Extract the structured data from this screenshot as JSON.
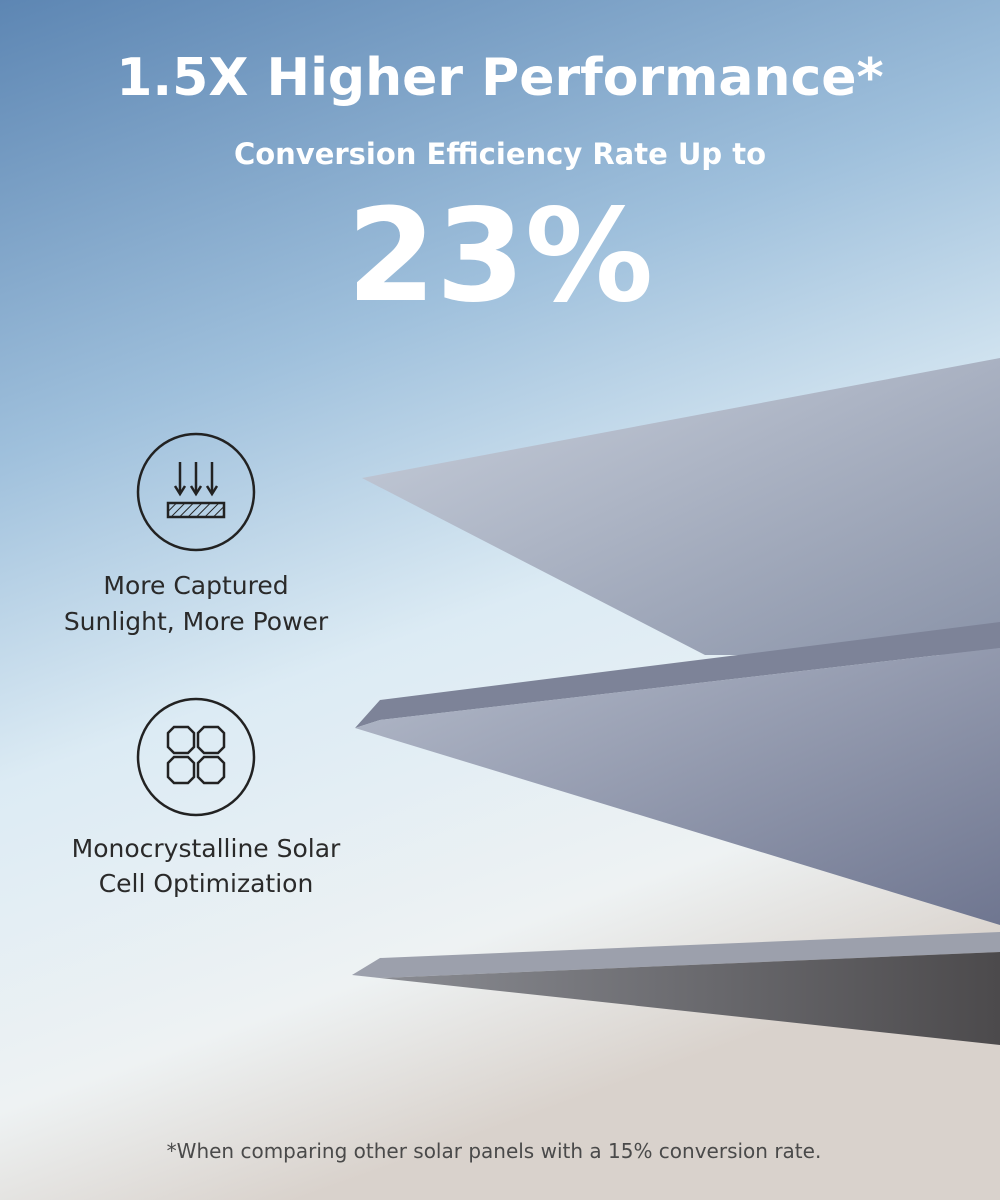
{
  "header": {
    "title": "1.5X Higher Performance*",
    "subtitle": "Conversion Efficiency Rate Up to",
    "stat": "23%"
  },
  "features": [
    {
      "lines": [
        "More Captured",
        "Sunlight, More Power"
      ]
    },
    {
      "lines": [
        "Monocrystalline Solar",
        "Cell Optimization"
      ]
    }
  ],
  "footnote": "*When comparing other solar panels with a 15% conversion rate."
}
